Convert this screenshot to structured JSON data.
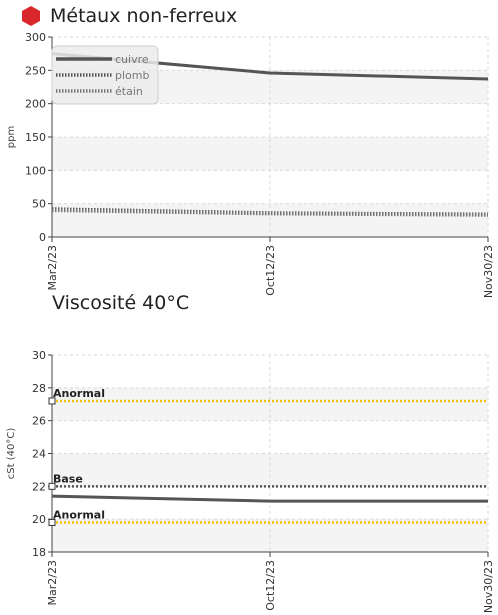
{
  "chart_data": [
    {
      "type": "line",
      "title": "Métaux non-ferreux",
      "title_icon": "red-hexagon-icon",
      "ylabel": "ppm",
      "ylim": [
        0,
        300
      ],
      "yticks": [
        0,
        50,
        100,
        150,
        200,
        250,
        300
      ],
      "categories": [
        "Mar2/23",
        "Oct12/23",
        "Nov30/23"
      ],
      "legend_position": "top-left",
      "grid": true,
      "series": [
        {
          "name": "cuivre",
          "values": [
            275,
            246,
            237
          ],
          "color": "#555555",
          "style": "solid"
        },
        {
          "name": "plomb",
          "values": [
            42,
            36,
            34
          ],
          "color": "#555555",
          "style": "dotted"
        },
        {
          "name": "étain",
          "values": [
            40,
            35,
            33
          ],
          "color": "#777777",
          "style": "dotted"
        }
      ]
    },
    {
      "type": "line",
      "title": "Viscosité 40°C",
      "ylabel": "cSt (40°C)",
      "ylim": [
        18,
        30
      ],
      "yticks": [
        18,
        20,
        22,
        24,
        26,
        28,
        30
      ],
      "categories": [
        "Mar2/23",
        "Oct12/23",
        "Nov30/23"
      ],
      "grid": true,
      "series": [
        {
          "values": [
            21.4,
            21.1,
            21.1
          ],
          "color": "#555555",
          "style": "solid"
        }
      ],
      "reference_lines": [
        {
          "label": "Anormal",
          "value": 27.2,
          "color": "#f0c000"
        },
        {
          "label": "Base",
          "value": 22.0,
          "color": "#555555"
        },
        {
          "label": "Anormal",
          "value": 19.8,
          "color": "#f0c000"
        }
      ]
    }
  ]
}
